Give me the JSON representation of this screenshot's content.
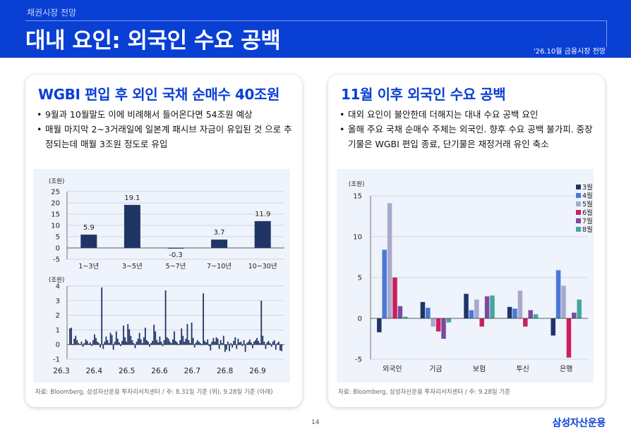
{
  "header": {
    "section": "채권시장 전망",
    "title": "대내 요인: 외국인 수요 공백",
    "tag": "'26.10월 금융시장 전망"
  },
  "left_panel": {
    "title": "WGBI 편입 후 외인 국채 순매수 40조원",
    "bullets": [
      "9월과 10월말도 이에 비례해서 들어온다면 54조원 예상",
      "매월 마지막 2~3거래일에 일본계 패시브 자금이 유입된 것 으로 추정되는데 매월 3조원 정도로 유입"
    ],
    "source": "자료: Bloomberg, 삼성자산운용 투자리서치센터 / 주: 8.31일 기준 (위), 9.28일 기준 (아래)"
  },
  "right_panel": {
    "title": "11월 이후 외국인 수요 공백",
    "bullets": [
      "대외 요인이 불안한데 더해지는 대내 수요 공백 요인",
      "올해 주요 국채 순매수 주체는 외국인. 향후 수요 공백 불가피. 중장기물은 WGBI 편입 종료, 단기물은 재정거래 유인 축소"
    ],
    "source": "자료: Bloomberg, 삼성자산운용 투자리서치센터 / 주: 9.28일 기준"
  },
  "footer": {
    "page": "14",
    "logo": "삼성자산운용"
  },
  "chart_data": [
    {
      "type": "bar",
      "ylabel": "(조원)",
      "categories": [
        "1~3년",
        "3~5년",
        "5~7년",
        "7~10년",
        "10~30년"
      ],
      "values": [
        5.9,
        19.1,
        -0.3,
        3.7,
        11.9
      ],
      "data_labels": [
        "5.9",
        "19.1",
        "-0.3",
        "3.7",
        "11.9"
      ],
      "ylim": [
        -5,
        25
      ],
      "yticks": [
        -5,
        0,
        5,
        10,
        15,
        20,
        25
      ],
      "grid": true,
      "color": "#1f3566"
    },
    {
      "type": "bar",
      "ylabel": "(조원)",
      "x_tick_labels": [
        "26.3",
        "26.4",
        "26.5",
        "26.6",
        "26.7",
        "26.8",
        "26.9"
      ],
      "ylim": [
        -1,
        4
      ],
      "yticks": [
        -1,
        0,
        1,
        2,
        3,
        4
      ],
      "grid": true,
      "color": "#1f3566",
      "values": [
        1.1,
        1.15,
        -0.05,
        0.4,
        0.6,
        0.3,
        0.1,
        0.0,
        0.2,
        -0.15,
        0.1,
        0.35,
        0.25,
        0.05,
        0.15,
        -0.1,
        0.3,
        0.7,
        0.45,
        0.2,
        0.1,
        -0.2,
        3.9,
        -0.3,
        0.2,
        0.55,
        0.3,
        0.1,
        0.8,
        0.65,
        -0.35,
        0.2,
        0.9,
        0.4,
        0.15,
        -0.1,
        0.25,
        1.3,
        0.5,
        0.2,
        1.4,
        1.05,
        0.6,
        0.3,
        0.1,
        -0.25,
        0.2,
        0.4,
        0.8,
        0.35,
        0.1,
        0.5,
        1.15,
        0.3,
        0.2,
        -0.15,
        0.1,
        0.25,
        1.35,
        0.9,
        0.3,
        0.15,
        0.55,
        0.2,
        -0.1,
        0.3,
        3.7,
        0.5,
        0.4,
        0.2,
        0.1,
        0.35,
        0.9,
        0.25,
        0.15,
        -0.05,
        0.3,
        1.1,
        0.6,
        0.2,
        0.4,
        1.4,
        0.3,
        0.1,
        1.5,
        0.45,
        -0.2,
        0.15,
        0.3,
        0.2,
        0.1,
        -0.05,
        3.5,
        0.25,
        0.15,
        0.35,
        -0.1,
        -0.4,
        0.2,
        0.45,
        0.2,
        0.5,
        0.4,
        -0.3,
        0.3,
        0.1,
        0.6,
        -0.5,
        -0.35,
        0.2,
        -0.45,
        0.1,
        -0.2,
        0.25,
        0.5,
        -0.3,
        0.4,
        0.15,
        0.2,
        -0.1,
        0.3,
        -0.5,
        0.1,
        0.2,
        0.35,
        0.15,
        -0.25,
        0.2,
        0.3,
        0.45,
        0.25,
        0.1,
        3.0,
        0.6,
        0.2,
        -0.3,
        0.15,
        0.25,
        0.1,
        -0.15,
        0.2,
        0.3,
        -0.35,
        0.1,
        0.2,
        -0.4,
        -0.45
      ]
    },
    {
      "type": "bar",
      "ylabel": "(조원)",
      "categories": [
        "외국인",
        "기금",
        "보험",
        "투신",
        "은행"
      ],
      "ylim": [
        -5,
        15
      ],
      "yticks": [
        -5,
        0,
        5,
        10,
        15
      ],
      "grid": true,
      "legend_position": "top-right",
      "series": [
        {
          "name": "3월",
          "color": "#1f3566",
          "values": [
            -1.7,
            2.0,
            3.0,
            1.4,
            -2.1
          ]
        },
        {
          "name": "4월",
          "color": "#4a78d8",
          "values": [
            8.4,
            1.3,
            1.0,
            1.2,
            5.9
          ]
        },
        {
          "name": "5월",
          "color": "#a9a8cc",
          "values": [
            14.1,
            -1.0,
            2.3,
            3.4,
            4.0
          ]
        },
        {
          "name": "6월",
          "color": "#cc1f5d",
          "values": [
            5.0,
            -1.6,
            -1.0,
            -1.0,
            -4.8
          ]
        },
        {
          "name": "7월",
          "color": "#7b4a9e",
          "values": [
            1.5,
            -2.5,
            2.7,
            1.0,
            0.7
          ]
        },
        {
          "name": "8월",
          "color": "#47a5a0",
          "values": [
            0.2,
            -0.5,
            2.8,
            0.5,
            2.3
          ]
        }
      ]
    }
  ]
}
